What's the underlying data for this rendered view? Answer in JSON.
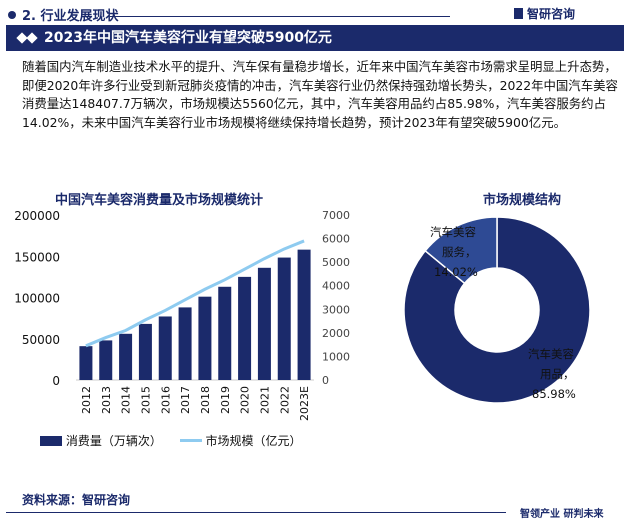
{
  "header": {
    "section": "2. 行业发展现状",
    "brand": "智研咨询",
    "banner_title": "2023年中国汽车美容行业有望突破5900亿元"
  },
  "paragraph": "随着国内汽车制造业技术水平的提升、汽车保有量稳步增长，近年来中国汽车美容市场需求呈明显上升态势，即便2020年许多行业受到新冠肺炎疫情的冲击，汽车美容行业仍然保持强劲增长势头，2022年中国汽车美容消费量达148407.7万辆次，市场规模达5560亿元，其中，汽车美容用品约占85.98%，汽车美容服务约占14.02%，未来中国汽车美容行业市场规模将继续保持增长趋势，预计2023年有望突破5900亿元。",
  "footer": {
    "source": "资料来源：智研咨询",
    "slogan": "智领产业  研判未来"
  },
  "colors": {
    "navy": "#1b2a6b",
    "line": "#8ecbf0"
  },
  "chart_data": [
    {
      "type": "bar+line",
      "title": "中国汽车美容消费量及市场规模统计",
      "categories": [
        "2012",
        "2013",
        "2014",
        "2015",
        "2016",
        "2017",
        "2018",
        "2019",
        "2020",
        "2021",
        "2022",
        "2023E"
      ],
      "series": [
        {
          "name": "消费量（万辆次）",
          "type": "bar",
          "axis": "left",
          "values": [
            41000,
            48000,
            56000,
            68000,
            77000,
            88000,
            101000,
            113000,
            125000,
            136000,
            148407.7,
            158000
          ]
        },
        {
          "name": "市场规模（亿元）",
          "type": "line",
          "axis": "right",
          "values": [
            1450,
            1800,
            2100,
            2550,
            2950,
            3400,
            3850,
            4250,
            4700,
            5150,
            5560,
            5900
          ]
        }
      ],
      "y_left": {
        "ticks": [
          "0",
          "50000",
          "100000",
          "150000",
          "200000"
        ],
        "range": [
          0,
          200000
        ]
      },
      "y_right": {
        "ticks": [
          "0",
          "1000",
          "2000",
          "3000",
          "4000",
          "5000",
          "6000",
          "7000"
        ],
        "range": [
          0,
          7000
        ]
      },
      "legend": "bottom"
    },
    {
      "type": "pie",
      "title": "市场规模结构",
      "donut": true,
      "slices": [
        {
          "label": "汽车美容用品",
          "value": 85.98,
          "display": [
            "汽车美容",
            "用品，",
            "85.98%"
          ]
        },
        {
          "label": "汽车美容服务",
          "value": 14.02,
          "display": [
            "汽车美容",
            "服务，",
            "14.02%"
          ]
        }
      ]
    }
  ]
}
